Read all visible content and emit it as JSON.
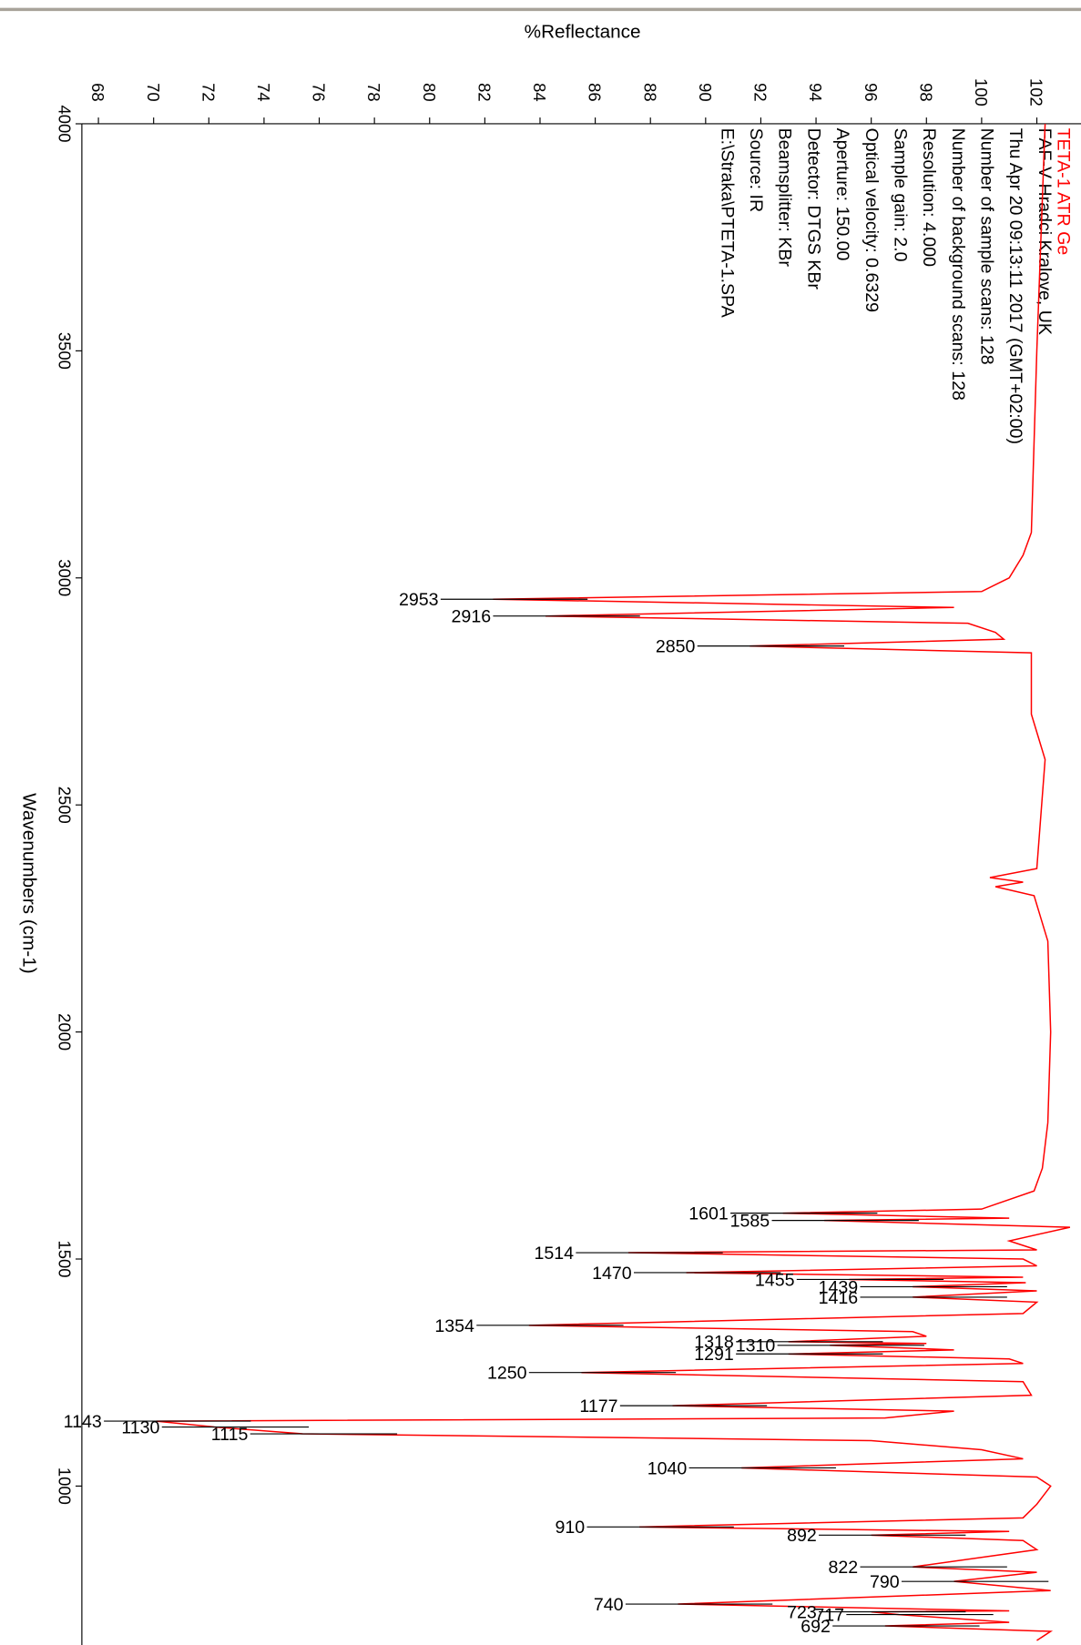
{
  "chart_data": {
    "type": "line",
    "title": "TETA-1 ATR Ge",
    "title_color": "#ff0000",
    "info": [
      "FAF-V Hradci Kralove, UK",
      "Thu Apr 20 09:13:11 2017 (GMT+02:00)",
      "Number of sample scans: 128",
      "Number of background scans: 128",
      "Resolution: 4.000",
      "Sample gain: 2.0",
      "Optical velocity: 0.6329",
      "Aperture: 150.00",
      "Detector: DTGS KBr",
      "Beamsplitter: KBr",
      "Source: IR",
      "E:\\Straka\\PTETA-1.SPA"
    ],
    "x_label": "Wavenumbers (cm-1)",
    "y_label": "%Reflectance",
    "xlim": [
      4000,
      650
    ],
    "xticks": [
      4000,
      3500,
      3000,
      2500,
      2000,
      1500,
      1000
    ],
    "ylim": [
      67.4,
      103.6
    ],
    "yticks": [
      68,
      70,
      72,
      74,
      76,
      78,
      80,
      82,
      84,
      86,
      88,
      90,
      92,
      94,
      96,
      98,
      100,
      102
    ],
    "x": [
      4000,
      3500,
      3100,
      3050,
      3000,
      2970,
      2953,
      2935,
      2916,
      2900,
      2880,
      2865,
      2850,
      2835,
      2700,
      2600,
      2360,
      2340,
      2330,
      2320,
      2300,
      2200,
      2000,
      1800,
      1700,
      1650,
      1610,
      1601,
      1590,
      1585,
      1570,
      1540,
      1520,
      1514,
      1500,
      1485,
      1470,
      1460,
      1455,
      1448,
      1439,
      1430,
      1416,
      1405,
      1380,
      1354,
      1340,
      1330,
      1318,
      1314,
      1310,
      1300,
      1291,
      1280,
      1270,
      1250,
      1230,
      1200,
      1177,
      1165,
      1150,
      1143,
      1130,
      1115,
      1100,
      1080,
      1060,
      1040,
      1020,
      1000,
      960,
      930,
      910,
      900,
      892,
      880,
      860,
      822,
      810,
      790,
      770,
      740,
      725,
      723,
      717,
      700,
      692,
      680,
      660
    ],
    "series": [
      {
        "color": "#ff0000",
        "values": [
          102.3,
          102.0,
          101.8,
          101.5,
          101.0,
          100.0,
          82.3,
          99.0,
          84.2,
          99.5,
          100.5,
          100.8,
          91.6,
          101.8,
          101.8,
          102.3,
          102.0,
          100.3,
          101.5,
          100.5,
          101.9,
          102.4,
          102.5,
          102.4,
          102.2,
          101.9,
          100.0,
          92.8,
          101.0,
          94.3,
          103.2,
          101.0,
          102.0,
          87.2,
          101.5,
          102.0,
          89.3,
          101.5,
          95.2,
          101.6,
          97.5,
          102.0,
          97.5,
          102.0,
          101.5,
          83.6,
          97.5,
          98.0,
          93.0,
          98.0,
          94.5,
          99.0,
          93.0,
          101.0,
          101.5,
          85.5,
          101.5,
          101.8,
          88.8,
          99.0,
          96.5,
          70.1,
          72.2,
          75.4,
          96.0,
          100.0,
          101.5,
          91.3,
          102.0,
          102.5,
          102.0,
          101.5,
          87.6,
          101.0,
          96.0,
          101.5,
          102.0,
          97.5,
          102.0,
          99.0,
          102.5,
          89.0,
          101.0,
          96.0,
          97.0,
          101.0,
          96.5,
          102.5,
          102.0
        ]
      }
    ],
    "peaks": {
      "x": [
        2953,
        2916,
        2850,
        1601,
        1585,
        1514,
        1470,
        1455,
        1439,
        1416,
        1354,
        1318,
        1310,
        1291,
        1250,
        1177,
        1143,
        1130,
        1115,
        1040,
        910,
        892,
        822,
        790,
        740,
        723,
        717,
        692
      ],
      "values": [
        82.3,
        84.2,
        91.6,
        92.8,
        94.3,
        87.2,
        89.3,
        95.2,
        97.5,
        97.5,
        83.6,
        93.0,
        94.5,
        93.0,
        85.5,
        88.8,
        70.1,
        72.2,
        75.4,
        91.3,
        87.6,
        96.0,
        97.5,
        99.0,
        89.0,
        96.0,
        97.0,
        96.5
      ]
    }
  }
}
